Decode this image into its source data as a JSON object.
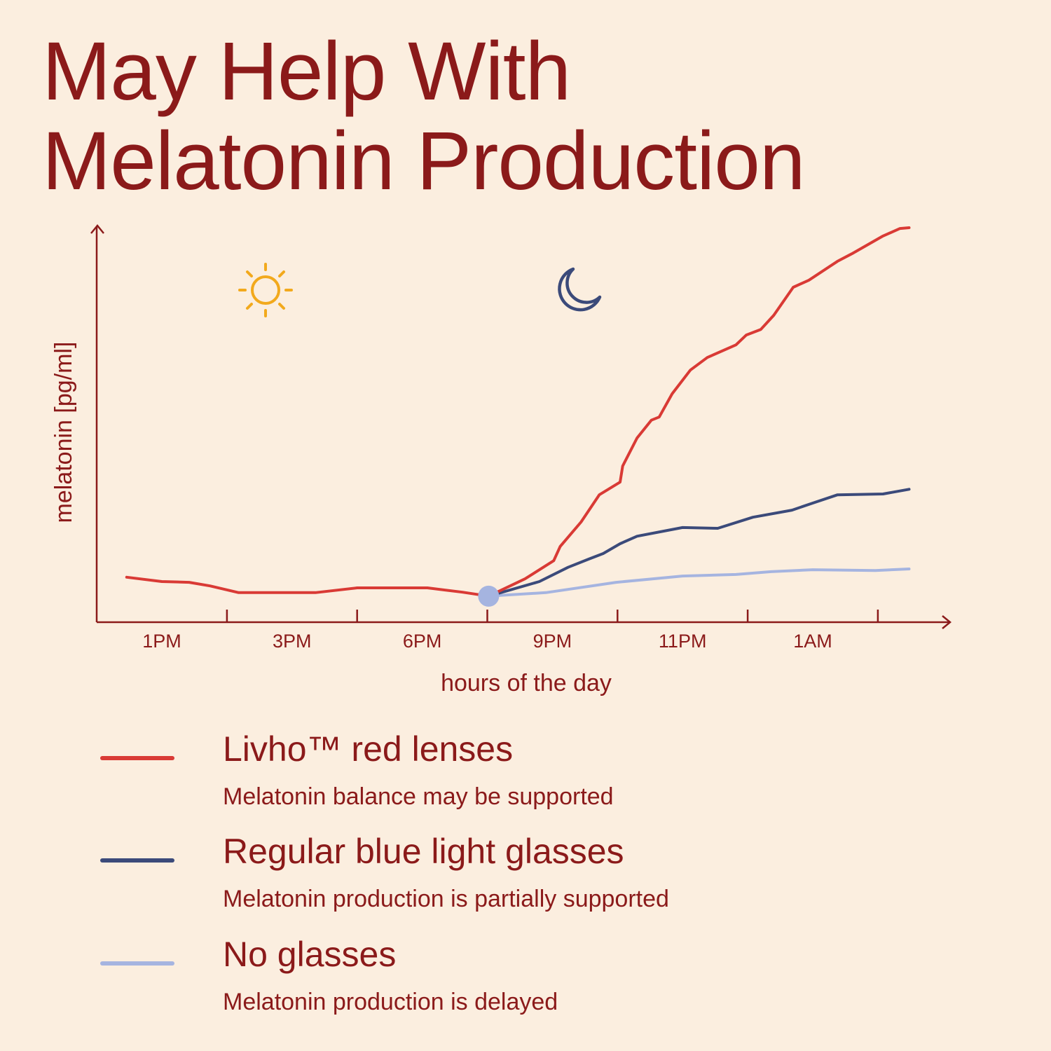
{
  "title": [
    "May Help With",
    "Melatonin Production"
  ],
  "colors": {
    "background": "#fbeedf",
    "text": "#8b1a1a",
    "axis": "#8b1a1a",
    "sun": "#f2a91c",
    "moon": "#3b4a7a",
    "marker": "#a5b4e0"
  },
  "icons": {
    "day": "sun-icon",
    "night": "moon-icon"
  },
  "chart_data": {
    "type": "line",
    "xlabel": "hours of the day",
    "ylabel": "melatonin [pg/ml]",
    "x_tick_labels": [
      "1PM",
      "3PM",
      "6PM",
      "9PM",
      "11PM",
      "1AM"
    ],
    "x_tick_label_positions": [
      0,
      1,
      2,
      3,
      4,
      5
    ],
    "xlim": [
      -0.5,
      6.0
    ],
    "ylim": [
      0,
      100
    ],
    "grid": false,
    "legend_placement": "bottom",
    "start_marker": {
      "x": 2.51,
      "y": 6.6
    },
    "series": [
      {
        "name": "Livho™ red lenses",
        "description": "Melatonin balance may be supported",
        "color": "#d93a35",
        "points": [
          [
            -0.27,
            11.4
          ],
          [
            0,
            10.3
          ],
          [
            0.21,
            10.1
          ],
          [
            0.37,
            9.2
          ],
          [
            0.59,
            7.5
          ],
          [
            1.18,
            7.5
          ],
          [
            1.5,
            8.7
          ],
          [
            2.04,
            8.7
          ],
          [
            2.31,
            7.6
          ],
          [
            2.51,
            6.6
          ],
          [
            2.79,
            11.0
          ],
          [
            3.01,
            15.6
          ],
          [
            3.06,
            19.2
          ],
          [
            3.22,
            25.4
          ],
          [
            3.36,
            32.3
          ],
          [
            3.52,
            35.5
          ],
          [
            3.54,
            39.6
          ],
          [
            3.65,
            46.7
          ],
          [
            3.76,
            51.2
          ],
          [
            3.82,
            52.0
          ],
          [
            3.92,
            57.9
          ],
          [
            4.06,
            63.9
          ],
          [
            4.19,
            67.1
          ],
          [
            4.41,
            70.3
          ],
          [
            4.49,
            72.8
          ],
          [
            4.6,
            74.2
          ],
          [
            4.7,
            77.8
          ],
          [
            4.85,
            84.9
          ],
          [
            4.97,
            86.7
          ],
          [
            5.19,
            91.5
          ],
          [
            5.3,
            93.4
          ],
          [
            5.54,
            97.9
          ],
          [
            5.67,
            99.8
          ],
          [
            5.74,
            100
          ]
        ]
      },
      {
        "name": "Regular blue light glasses",
        "description": "Melatonin production is partially supported",
        "color": "#3b4a7a",
        "points": [
          [
            2.51,
            6.6
          ],
          [
            2.9,
            10.3
          ],
          [
            3.12,
            13.9
          ],
          [
            3.28,
            16.0
          ],
          [
            3.39,
            17.4
          ],
          [
            3.52,
            19.9
          ],
          [
            3.65,
            21.8
          ],
          [
            4.0,
            24.0
          ],
          [
            4.27,
            23.8
          ],
          [
            4.54,
            26.6
          ],
          [
            4.84,
            28.4
          ],
          [
            5.0,
            30.2
          ],
          [
            5.19,
            32.3
          ],
          [
            5.54,
            32.5
          ],
          [
            5.74,
            33.7
          ]
        ]
      },
      {
        "name": "No glasses",
        "description": "Melatonin production is delayed",
        "color": "#a5b4e0",
        "points": [
          [
            2.51,
            6.6
          ],
          [
            2.95,
            7.5
          ],
          [
            3.49,
            10.1
          ],
          [
            4.0,
            11.7
          ],
          [
            4.41,
            12.1
          ],
          [
            4.68,
            12.8
          ],
          [
            5.0,
            13.3
          ],
          [
            5.48,
            13.1
          ],
          [
            5.74,
            13.5
          ]
        ]
      }
    ]
  }
}
